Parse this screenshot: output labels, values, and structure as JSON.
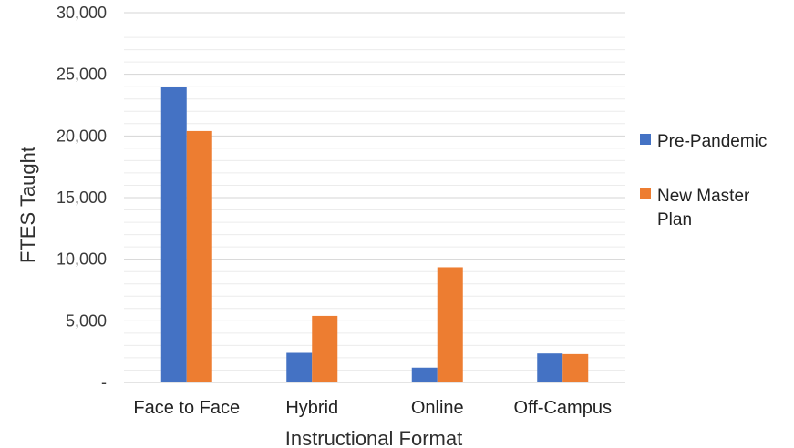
{
  "chart_data": {
    "type": "bar",
    "title": "",
    "xlabel": "Instructional Format",
    "ylabel": "FTES Taught",
    "categories": [
      "Face to Face",
      "Hybrid",
      "Online",
      "Off-Campus"
    ],
    "series": [
      {
        "name": "Pre-Pandemic",
        "values": [
          24000,
          2400,
          1200,
          2350
        ],
        "color": "#4472C4"
      },
      {
        "name": "New Master Plan",
        "values": [
          20400,
          5400,
          9350,
          2300
        ],
        "color": "#ED7D31"
      }
    ],
    "ylim": [
      0,
      30000
    ],
    "yticks": [
      0,
      5000,
      10000,
      15000,
      20000,
      25000,
      30000
    ],
    "ytick_labels": [
      "-",
      "5,000",
      "10,000",
      "15,000",
      "20,000",
      "25,000",
      "30,000"
    ],
    "grid": true,
    "legend": {
      "placement": "right",
      "entries": [
        [
          "Pre-Pandemic"
        ],
        [
          "New Master",
          "Plan"
        ]
      ]
    }
  }
}
